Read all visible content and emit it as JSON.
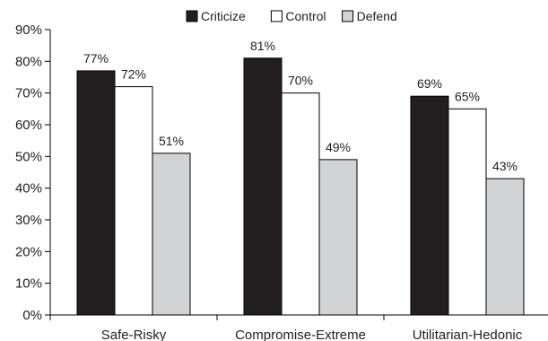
{
  "chart_data": {
    "type": "bar",
    "categories": [
      "Safe-Risky",
      "Compromise-Extreme",
      "Utilitarian-Hedonic"
    ],
    "series": [
      {
        "name": "Criticize",
        "values": [
          77,
          81,
          69
        ],
        "color": "#231f20",
        "labels": [
          "77%",
          "81%",
          "69%"
        ]
      },
      {
        "name": "Control",
        "values": [
          72,
          70,
          65
        ],
        "color": "#ffffff",
        "labels": [
          "72%",
          "70%",
          "65%"
        ]
      },
      {
        "name": "Defend",
        "values": [
          51,
          49,
          43
        ],
        "color": "#d1d3d4",
        "labels": [
          "51%",
          "49%",
          "43%"
        ]
      }
    ],
    "ylim": [
      0,
      90
    ],
    "yticks": [
      0,
      10,
      20,
      30,
      40,
      50,
      60,
      70,
      80,
      90
    ],
    "ytick_labels": [
      "0%",
      "10%",
      "20%",
      "30%",
      "40%",
      "50%",
      "60%",
      "70%",
      "80%",
      "90%"
    ],
    "grid": false,
    "legend_position": "top-center",
    "title": "",
    "xlabel": "",
    "ylabel": ""
  }
}
